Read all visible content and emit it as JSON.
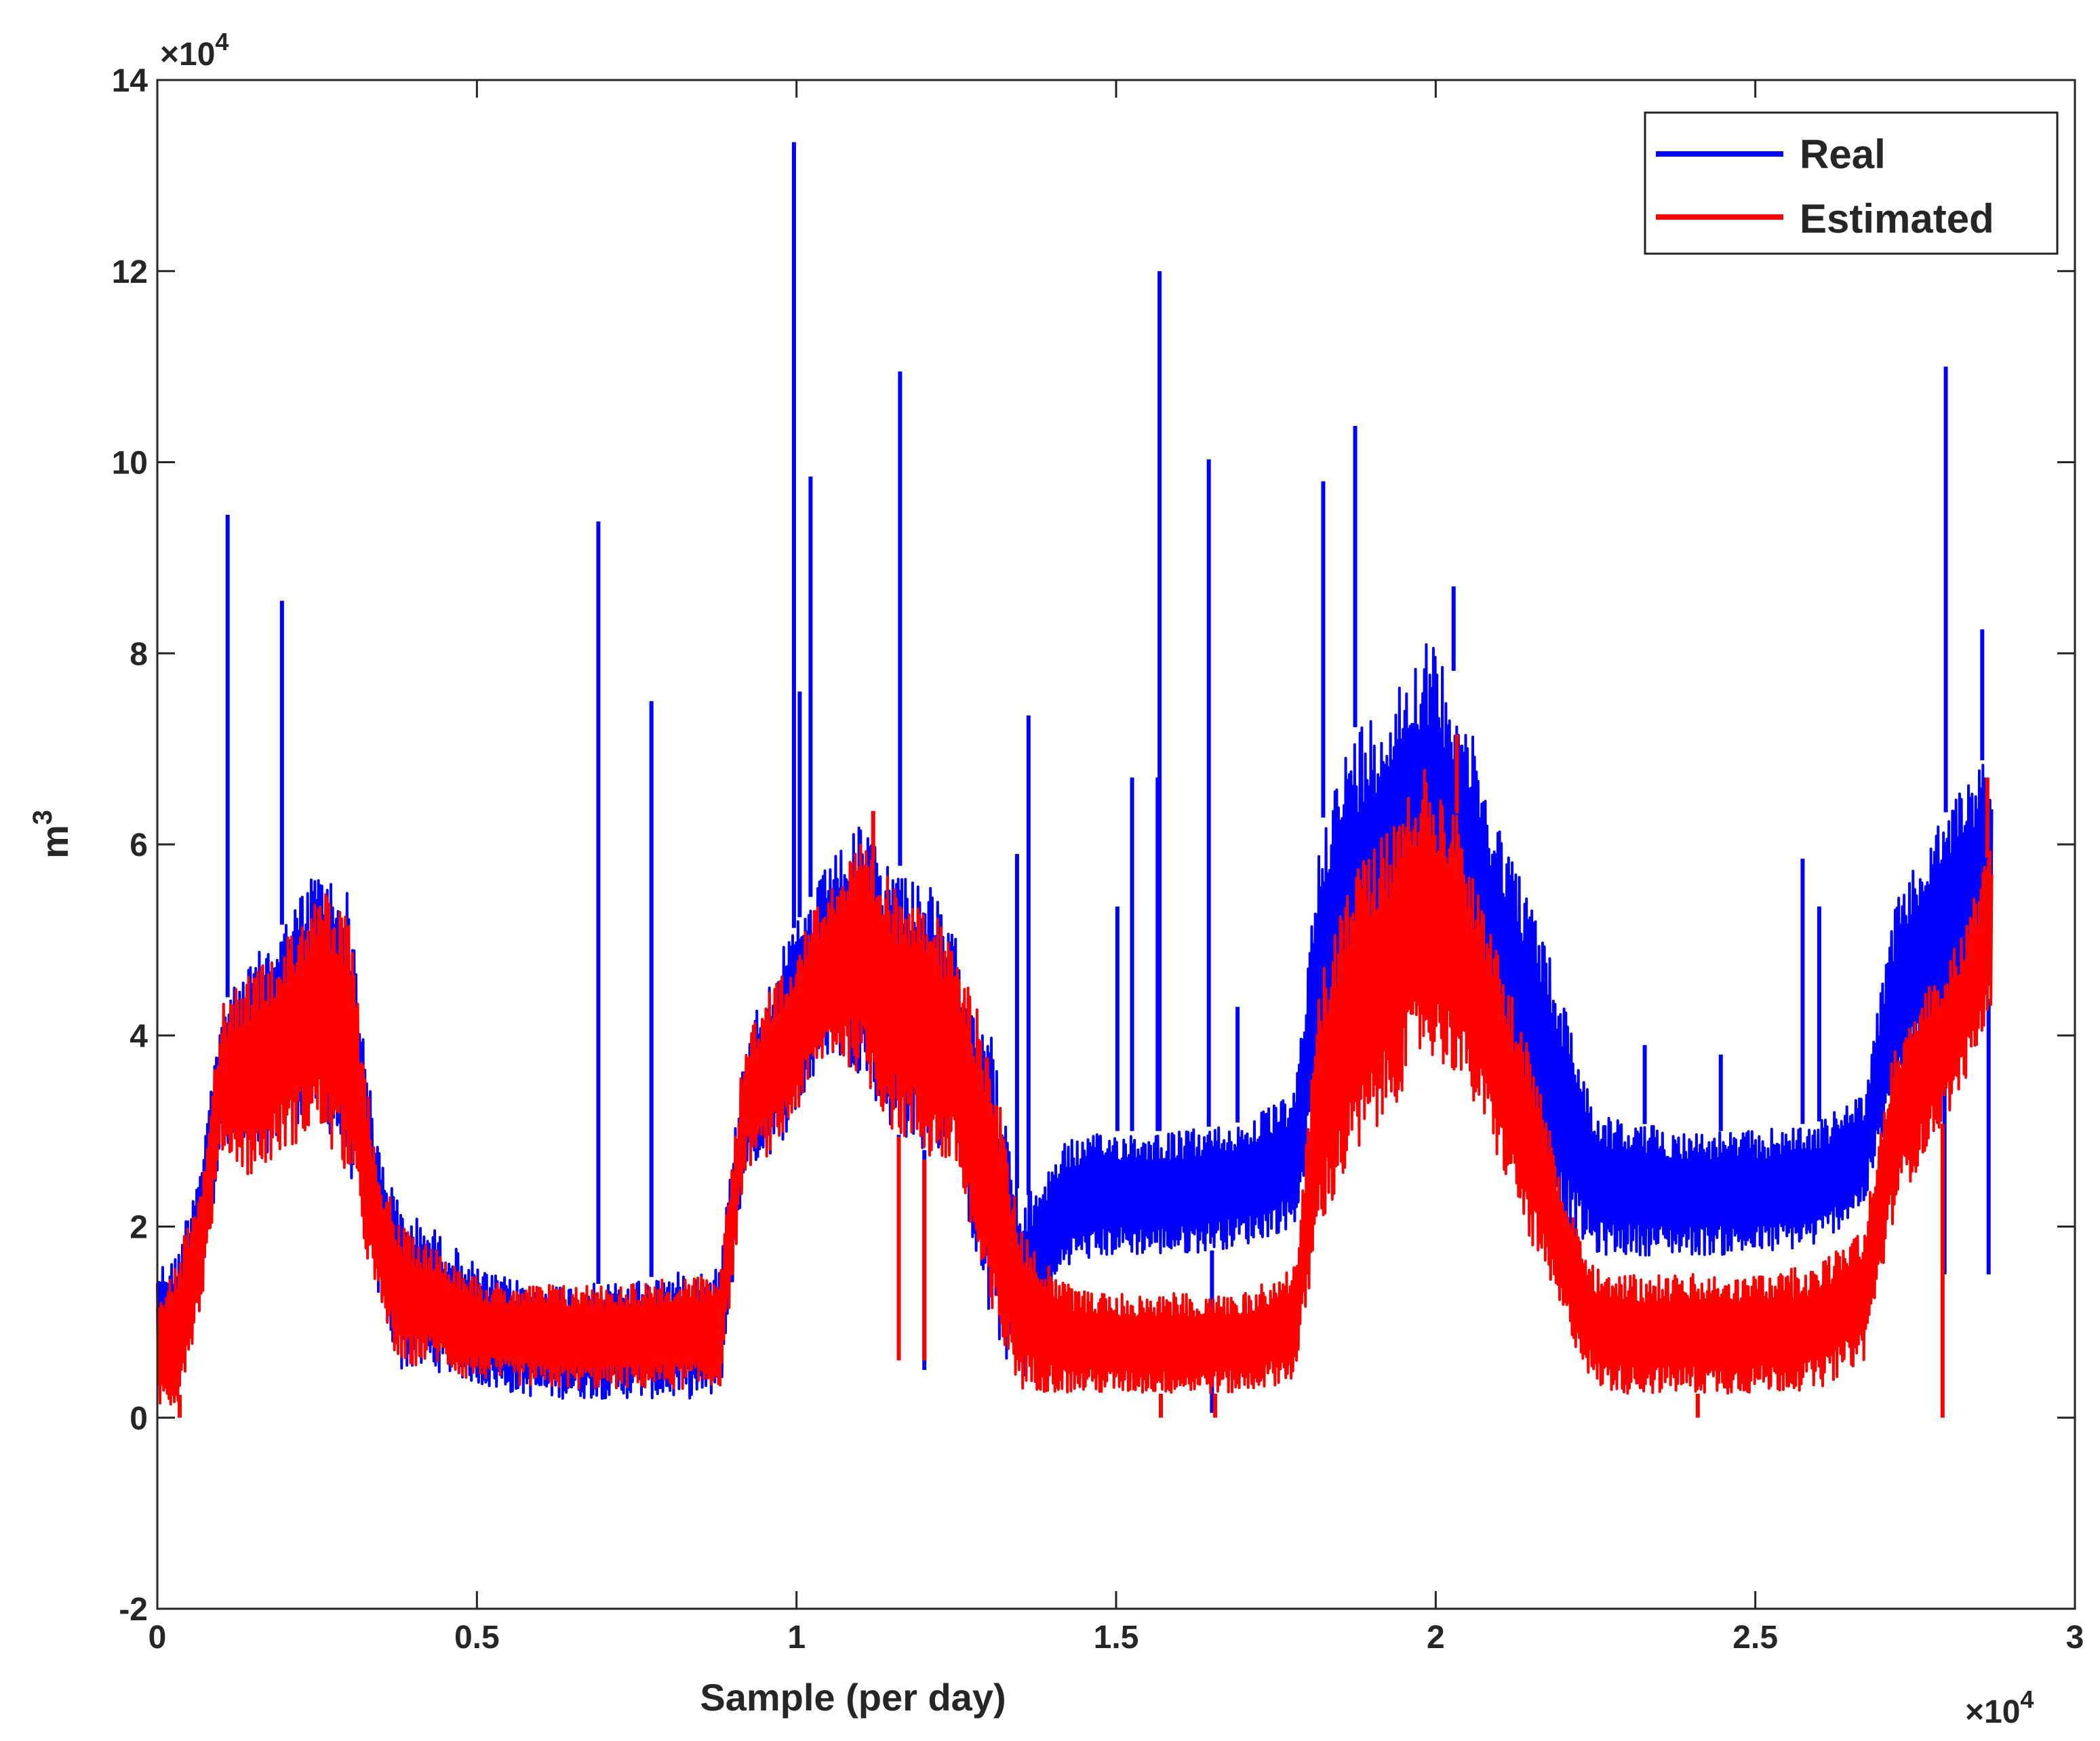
{
  "chart_data": {
    "type": "line",
    "title": "",
    "xlabel": "Sample (per day)",
    "ylabel": "m",
    "ylabel_superscript": "3",
    "x_exponent_base": "×10",
    "x_exponent_power": "4",
    "y_exponent_base": "×10",
    "y_exponent_power": "4",
    "xlim": [
      0,
      30000
    ],
    "ylim": [
      -20000,
      140000
    ],
    "x_ticks": [
      0,
      5000,
      10000,
      15000,
      20000,
      25000,
      30000
    ],
    "x_tick_labels": [
      "0",
      "0.5",
      "1",
      "1.5",
      "2",
      "2.5",
      "3"
    ],
    "y_ticks": [
      -20000,
      0,
      20000,
      40000,
      60000,
      80000,
      100000,
      120000,
      140000
    ],
    "y_tick_labels": [
      "-2",
      "0",
      "2",
      "4",
      "6",
      "8",
      "10",
      "12",
      "14"
    ],
    "grid": false,
    "legend_position": "top-right",
    "sample_count": 28700,
    "series": [
      {
        "name": "Real",
        "color": "#0000ff",
        "envelope": {
          "x": [
            0,
            300,
            700,
            1000,
            1500,
            2000,
            2500,
            3000,
            3400,
            3800,
            4300,
            4800,
            5200,
            6000,
            7000,
            8000,
            8800,
            9200,
            9700,
            10500,
            11000,
            11500,
            12000,
            12500,
            13000,
            13500,
            14200,
            15000,
            16000,
            17000,
            17800,
            18200,
            18700,
            19300,
            19800,
            20300,
            20800,
            21500,
            22000,
            22500,
            23000,
            24000,
            25000,
            26000,
            26700,
            27200,
            27700,
            28200,
            28700
          ],
          "low": [
            4000,
            3000,
            14000,
            28000,
            26000,
            30000,
            32000,
            26000,
            14000,
            5000,
            5000,
            4000,
            3000,
            2000,
            2000,
            2000,
            2000,
            26000,
            28000,
            38000,
            36000,
            30000,
            28000,
            27000,
            10000,
            3000,
            16000,
            17000,
            17000,
            18000,
            20000,
            34000,
            34000,
            40000,
            44000,
            40000,
            36000,
            28000,
            20000,
            17000,
            17000,
            17000,
            17000,
            18000,
            22000,
            34000,
            38000,
            42000,
            44000
          ],
          "high": [
            16000,
            17000,
            28000,
            43000,
            48000,
            52000,
            58000,
            55000,
            30000,
            22000,
            20000,
            17000,
            15000,
            14000,
            14000,
            15000,
            16000,
            40000,
            48000,
            58000,
            62000,
            58000,
            57000,
            50000,
            42000,
            22000,
            29000,
            30000,
            30000,
            31000,
            34000,
            62000,
            72000,
            76000,
            82000,
            78000,
            66000,
            54000,
            44000,
            32000,
            31000,
            30000,
            30000,
            31000,
            34000,
            54000,
            60000,
            66000,
            70000
          ]
        },
        "spikes": [
          [
            1100,
            94500
          ],
          [
            1950,
            85500
          ],
          [
            6900,
            93800
          ],
          [
            7730,
            75000
          ],
          [
            9960,
            133500
          ],
          [
            10050,
            76000
          ],
          [
            10220,
            98500
          ],
          [
            11620,
            109500
          ],
          [
            13630,
            73500
          ],
          [
            13450,
            59000
          ],
          [
            15020,
            53500
          ],
          [
            15250,
            67000
          ],
          [
            15680,
            120000
          ],
          [
            15650,
            67000
          ],
          [
            16450,
            100300
          ],
          [
            16900,
            43000
          ],
          [
            18240,
            98000
          ],
          [
            18740,
            103800
          ],
          [
            20280,
            87000
          ],
          [
            23270,
            39000
          ],
          [
            25740,
            58500
          ],
          [
            27980,
            110000
          ],
          [
            28550,
            82500
          ],
          [
            26000,
            53500
          ],
          [
            24460,
            38000
          ]
        ],
        "dips": [
          [
            11600,
            7000
          ],
          [
            12000,
            5000
          ],
          [
            16500,
            500
          ],
          [
            27960,
            15000
          ],
          [
            28650,
            15000
          ]
        ]
      },
      {
        "name": "Estimated",
        "color": "#ff0000",
        "envelope": {
          "x": [
            0,
            300,
            700,
            1000,
            1500,
            2000,
            2500,
            3000,
            3400,
            3800,
            4300,
            4800,
            5200,
            6000,
            7000,
            8000,
            8800,
            9200,
            9700,
            10500,
            11000,
            11500,
            12000,
            12500,
            13000,
            13500,
            14200,
            15000,
            16000,
            17000,
            17800,
            18200,
            18700,
            19300,
            19800,
            20300,
            20800,
            21500,
            22000,
            22500,
            23000,
            24000,
            25000,
            26000,
            26700,
            27200,
            27700,
            28200,
            28700
          ],
          "low": [
            1000,
            1000,
            12000,
            28000,
            25000,
            28000,
            30000,
            25000,
            13000,
            5000,
            6000,
            4000,
            4000,
            3000,
            3000,
            3000,
            3000,
            26000,
            28000,
            38000,
            36000,
            30000,
            27000,
            26000,
            10000,
            3000,
            2500,
            2500,
            2500,
            2500,
            4000,
            20000,
            26000,
            32000,
            38000,
            36000,
            30000,
            18000,
            10000,
            3000,
            2500,
            2500,
            2500,
            3000,
            6000,
            22000,
            28000,
            34000,
            42000
          ],
          "high": [
            14000,
            16000,
            26000,
            43000,
            47000,
            50000,
            56000,
            52000,
            28000,
            20000,
            18000,
            16000,
            14000,
            14000,
            14000,
            14500,
            15000,
            40000,
            46000,
            56000,
            60000,
            56000,
            56000,
            48000,
            40000,
            20000,
            14000,
            13000,
            13000,
            13000,
            16000,
            46000,
            58000,
            62000,
            68000,
            64000,
            52000,
            38000,
            24000,
            16000,
            15000,
            15000,
            15000,
            16000,
            20000,
            40000,
            45000,
            50000,
            60000
          ]
        },
        "spikes": [
          [
            20330,
            71500
          ],
          [
            28630,
            67000
          ],
          [
            11200,
            63500
          ]
        ],
        "dips": [
          [
            11600,
            6000
          ],
          [
            12000,
            6000
          ],
          [
            15700,
            0
          ],
          [
            16550,
            0
          ],
          [
            24100,
            0
          ],
          [
            27930,
            0
          ],
          [
            350,
            0
          ]
        ]
      }
    ]
  }
}
